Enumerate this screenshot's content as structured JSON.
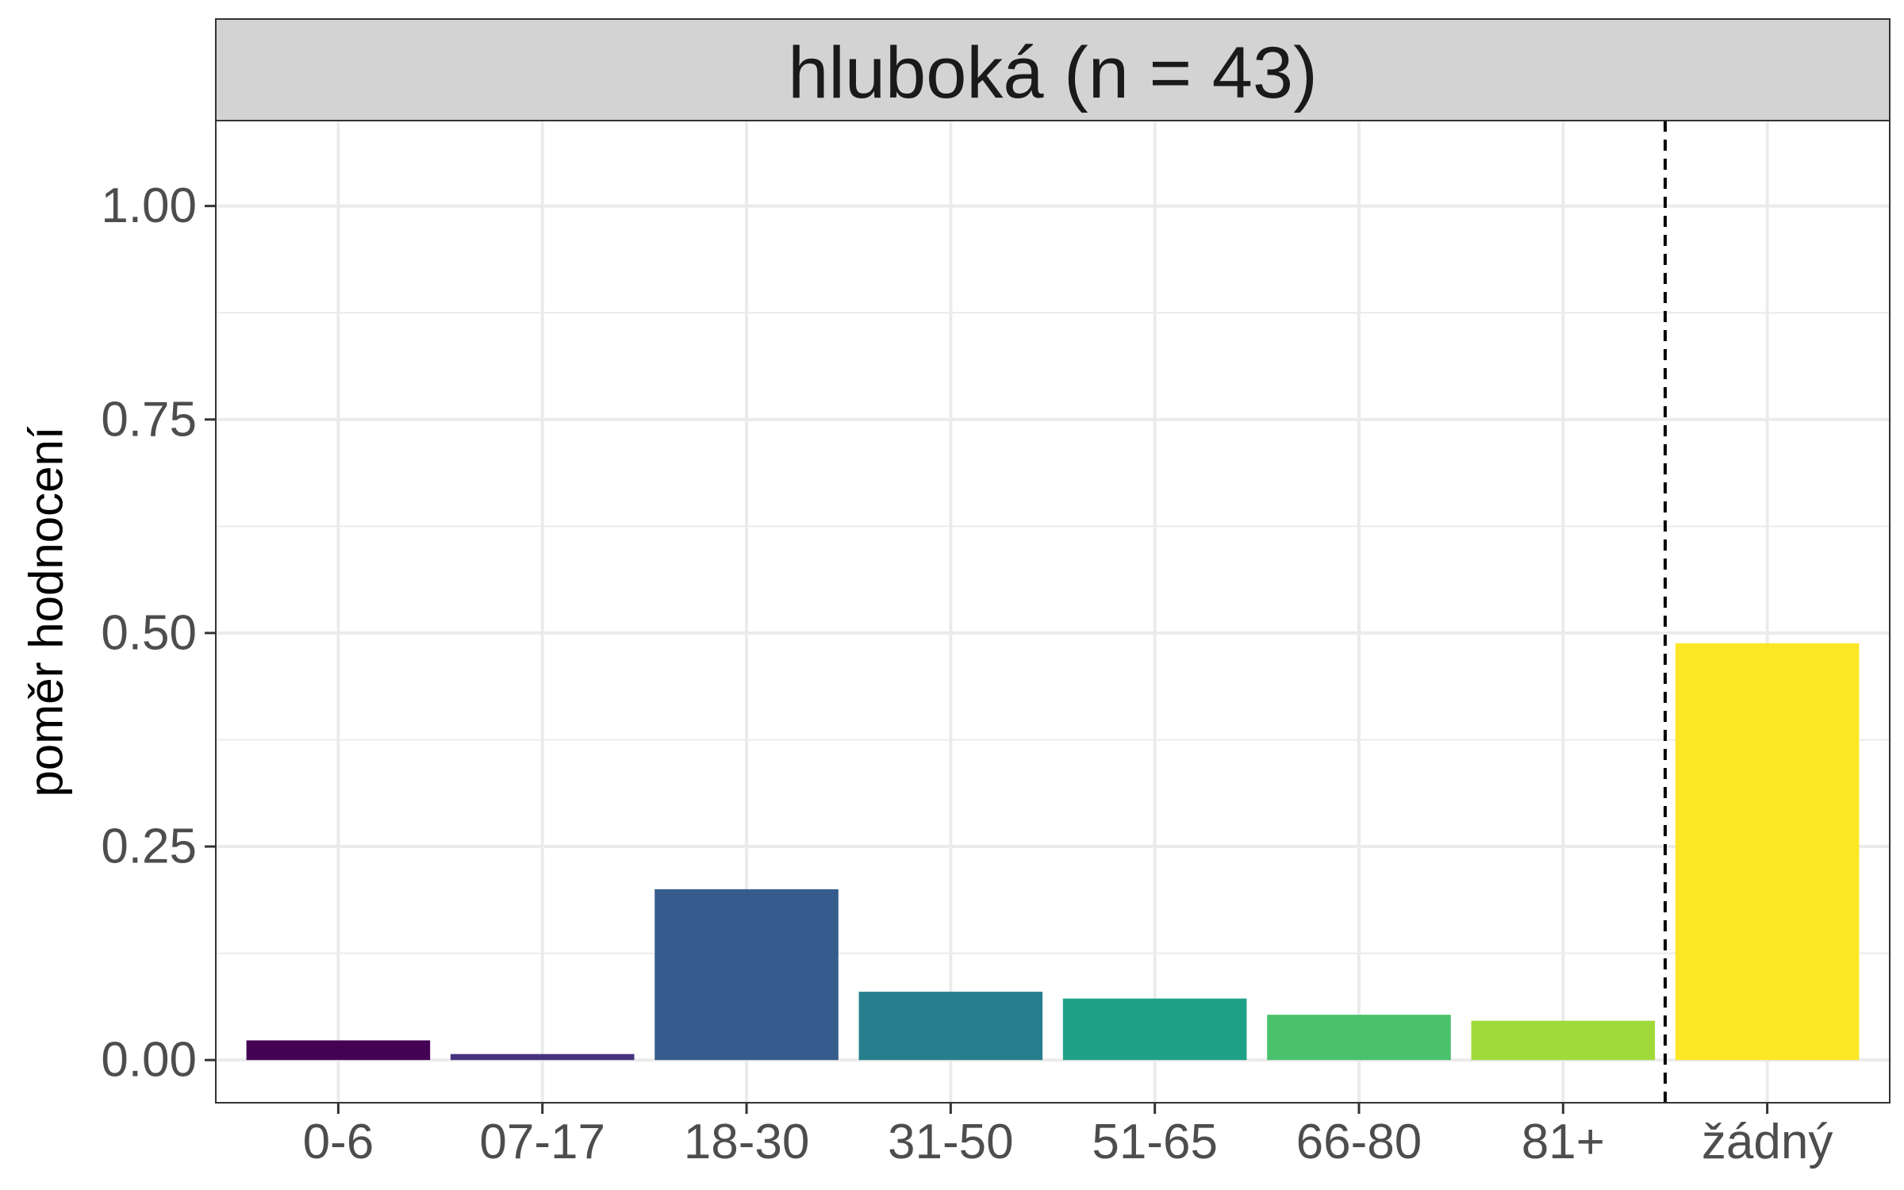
{
  "chart_data": {
    "type": "bar",
    "title": "hluboká (n = 43)",
    "xlabel": "",
    "ylabel": "poměr hodnocení",
    "categories": [
      "0-6",
      "07-17",
      "18-30",
      "31-50",
      "51-65",
      "66-80",
      "81+",
      "žádný"
    ],
    "values": [
      0.023,
      0.007,
      0.2,
      0.08,
      0.072,
      0.053,
      0.046,
      0.488
    ],
    "colors": [
      "#440154",
      "#46337E",
      "#365C8D",
      "#277F8E",
      "#1FA187",
      "#4AC16D",
      "#9FDA3A",
      "#FDE725"
    ],
    "ylim": [
      -0.05,
      1.1
    ],
    "yticks": [
      0,
      0.25,
      0.5,
      0.75,
      1.0
    ],
    "ytick_labels": [
      "0.00",
      "0.25",
      "0.50",
      "0.75",
      "1.00"
    ],
    "grid": true,
    "separator": "dashed vertical line between 81+ and žádný",
    "strip_color": "#d3d3d3"
  }
}
